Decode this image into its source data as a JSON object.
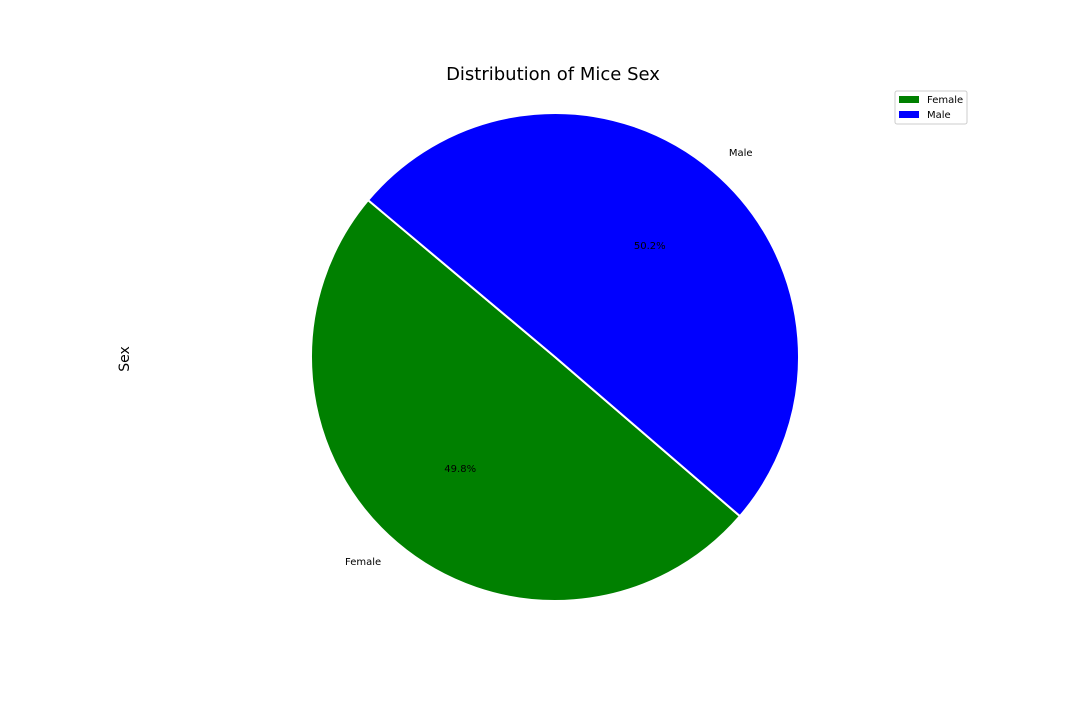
{
  "chart_data": {
    "type": "pie",
    "title": "Distribution of Mice Sex",
    "ylabel": "Sex",
    "categories": [
      "Female",
      "Male"
    ],
    "values": [
      49.8,
      50.2
    ],
    "percent_labels": [
      "49.8%",
      "50.2%"
    ],
    "colors": [
      "#008000",
      "#0000ff"
    ],
    "legend": {
      "placement": "top-right",
      "entries": [
        "Female",
        "Male"
      ]
    },
    "edge_color": "#ffffff",
    "grid": false
  }
}
